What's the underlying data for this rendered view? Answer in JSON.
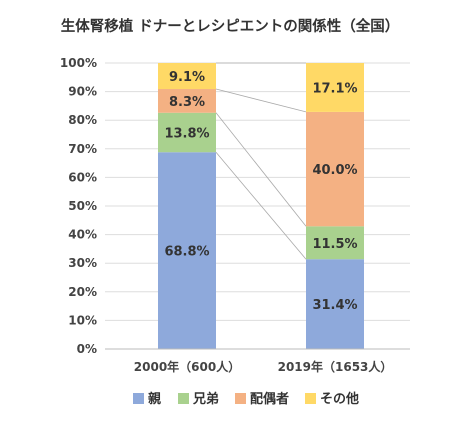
{
  "chart_data": {
    "type": "bar",
    "stacked": true,
    "percent": true,
    "title": "生体腎移植 ドナーとレシピエントの関係性（全国）",
    "categories": [
      "2000年（600人）",
      "2019年（1653人）"
    ],
    "series": [
      {
        "name": "親",
        "color": "#8ea9db",
        "values": [
          68.8,
          31.4
        ],
        "labels": [
          "68.8%",
          "31.4%"
        ]
      },
      {
        "name": "兄弟",
        "color": "#a9d18e",
        "values": [
          13.8,
          11.5
        ],
        "labels": [
          "13.8%",
          "11.5%"
        ]
      },
      {
        "name": "配偶者",
        "color": "#f4b183",
        "values": [
          8.3,
          40.0
        ],
        "labels": [
          "8.3%",
          "40.0%"
        ]
      },
      {
        "name": "その他",
        "color": "#ffd966",
        "values": [
          9.1,
          17.1
        ],
        "labels": [
          "9.1%",
          "17.1%"
        ]
      }
    ],
    "ylim": [
      0,
      100
    ],
    "yticks": [
      "0%",
      "10%",
      "20%",
      "30%",
      "40%",
      "50%",
      "60%",
      "70%",
      "80%",
      "90%",
      "100%"
    ],
    "grid": true,
    "connector_lines": true,
    "legend_position": "bottom"
  }
}
